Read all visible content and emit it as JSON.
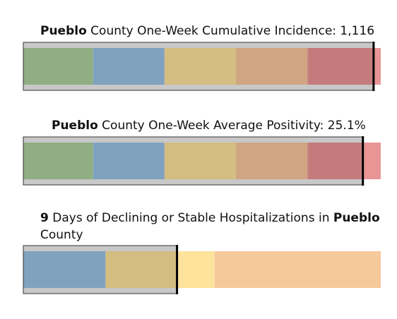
{
  "chart_data": [
    {
      "type": "bar",
      "chart_kind": "bullet",
      "title_bold": "Pueblo",
      "title_rest": " County One-Week Cumulative Incidence: 1,116",
      "value": 1116,
      "value_fraction": 0.98,
      "band_colors": [
        "#8fae82",
        "#81a2be",
        "#d3bd80",
        "#cfa582",
        "#c57b7b",
        "#e99596"
      ],
      "band_fractions": [
        0.195,
        0.395,
        0.595,
        0.795,
        0.98,
        1.0
      ],
      "track_color": "#c8c8c8"
    },
    {
      "type": "bar",
      "chart_kind": "bullet",
      "title_bold": "Pueblo",
      "title_rest": " County One-Week Average Positivity: 25.1%",
      "value": 25.1,
      "value_fraction": 0.95,
      "band_colors": [
        "#8fae82",
        "#81a2be",
        "#d3bd80",
        "#cfa582",
        "#c57b7b",
        "#e99596"
      ],
      "band_fractions": [
        0.195,
        0.395,
        0.595,
        0.795,
        0.95,
        1.0
      ],
      "track_color": "#c8c8c8"
    },
    {
      "type": "bar",
      "chart_kind": "bullet",
      "title_bold_lead": "9",
      "title_mid": " Days of Declining or Stable Hospitalizations in ",
      "title_bold_tail": "Pueblo",
      "title_end": " County",
      "value": 9,
      "value_fraction": 0.43,
      "band_colors": [
        "#81a2be",
        "#d3bd80",
        "#fde39b",
        "#f6c99b"
      ],
      "band_fractions": [
        0.23,
        0.43,
        0.535,
        1.0
      ],
      "track_color": "#c8c8c8"
    }
  ]
}
